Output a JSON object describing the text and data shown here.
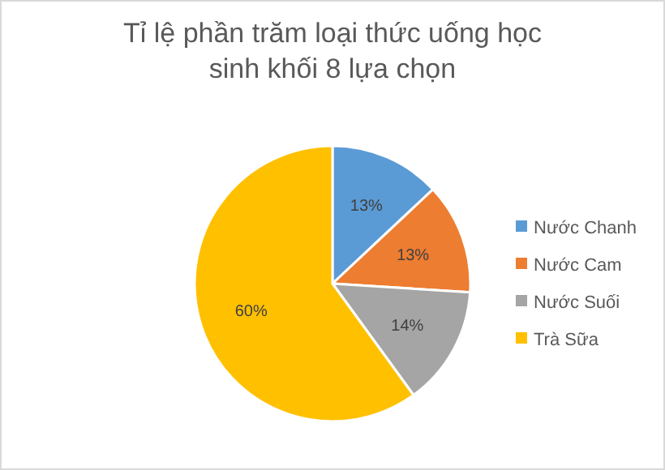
{
  "chart_data": {
    "type": "pie",
    "title": "Tỉ lệ phần trăm loại thức uống học sinh khối 8 lựa chọn",
    "categories": [
      "Nước Chanh",
      "Nước Cam",
      "Nước Suối",
      "Trà Sữa"
    ],
    "values": [
      13,
      13,
      14,
      60
    ],
    "value_labels": [
      "13%",
      "13%",
      "14%",
      "60%"
    ],
    "colors": [
      "#5b9bd5",
      "#ed7d31",
      "#a5a5a5",
      "#ffc000"
    ],
    "legend": "right"
  }
}
